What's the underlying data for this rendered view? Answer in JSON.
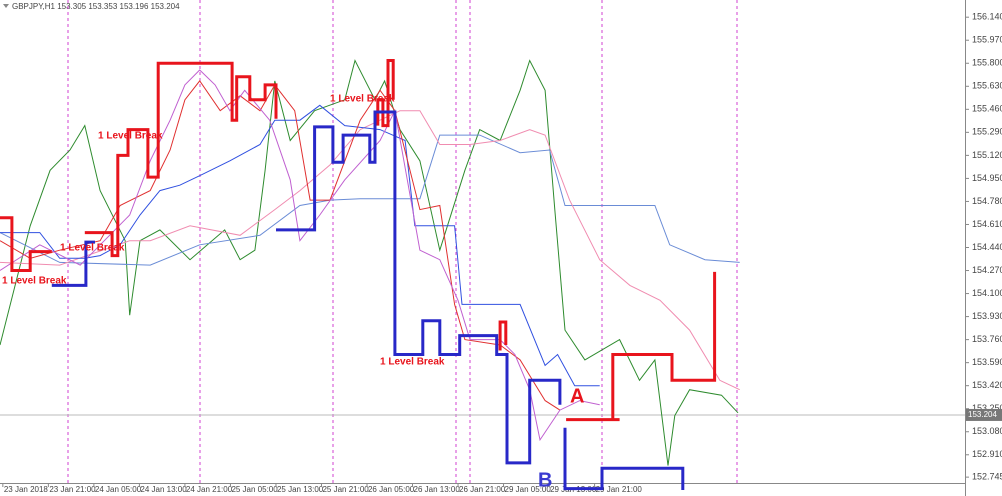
{
  "chart_data": {
    "type": "line",
    "title": "GBPJPY,H1  153.305 153.353 153.196 153.204",
    "xlim": [
      -0.5,
      169.1
    ],
    "ylim": [
      152.65,
      156.23
    ],
    "xticks": [
      {
        "value": 0,
        "label": "23 Jan 2018"
      },
      {
        "value": 8,
        "label": "23 Jan 21:00"
      },
      {
        "value": 16,
        "label": "24 Jan 05:00"
      },
      {
        "value": 24,
        "label": "24 Jan 13:00"
      },
      {
        "value": 32,
        "label": "24 Jan 21:00"
      },
      {
        "value": 40,
        "label": "25 Jan 05:00"
      },
      {
        "value": 48,
        "label": "25 Jan 13:00"
      },
      {
        "value": 56,
        "label": "25 Jan 21:00"
      },
      {
        "value": 64,
        "label": "26 Jan 05:00"
      },
      {
        "value": 72,
        "label": "26 Jan 13:00"
      },
      {
        "value": 80,
        "label": "26 Jan 21:00"
      },
      {
        "value": 88,
        "label": "29 Jan 05:00"
      },
      {
        "value": 96,
        "label": "29 Jan 13:00"
      },
      {
        "value": 104,
        "label": "29 Jan 21:00"
      }
    ],
    "yticks": [
      {
        "value": 156.14,
        "label": "156.140"
      },
      {
        "value": 155.97,
        "label": "155.970"
      },
      {
        "value": 155.8,
        "label": "155.800"
      },
      {
        "value": 155.63,
        "label": "155.630"
      },
      {
        "value": 155.46,
        "label": "155.460"
      },
      {
        "value": 155.29,
        "label": "155.290"
      },
      {
        "value": 155.12,
        "label": "155.120"
      },
      {
        "value": 154.95,
        "label": "154.950"
      },
      {
        "value": 154.78,
        "label": "154.780"
      },
      {
        "value": 154.61,
        "label": "154.610"
      },
      {
        "value": 154.44,
        "label": "154.440"
      },
      {
        "value": 154.27,
        "label": "154.270"
      },
      {
        "value": 154.1,
        "label": "154.100"
      },
      {
        "value": 153.93,
        "label": "153.930"
      },
      {
        "value": 153.76,
        "label": "153.760"
      },
      {
        "value": 153.59,
        "label": "153.590"
      },
      {
        "value": 153.42,
        "label": "153.420"
      },
      {
        "value": 153.25,
        "label": "153.250"
      },
      {
        "value": 153.08,
        "label": "153.080"
      },
      {
        "value": 152.91,
        "label": "152.910"
      },
      {
        "value": 152.745,
        "label": "152.745"
      }
    ],
    "last_price": {
      "value": 153.204,
      "label": "153.204"
    },
    "annotations": [
      {
        "text": "1 Level Break",
        "color": "#e8141c"
      },
      {
        "text": "1 Level Break",
        "color": "#e8141c"
      },
      {
        "text": "1 Level Break",
        "color": "#e8141c"
      },
      {
        "text": "1 Level Break",
        "color": "#e8141c"
      },
      {
        "text": "1 Level Break",
        "color": "#e8141c"
      },
      {
        "text": "A",
        "color": "#e8141c"
      },
      {
        "text": "B",
        "color": "#3a3ad0"
      }
    ],
    "series": [
      {
        "color": "#2e8b2e",
        "width": 1,
        "x": [
          -0.5,
          4.8,
          8.3,
          11.8,
          14.4,
          17.1,
          21.5,
          22.3,
          24.1,
          27.6,
          32.9,
          39.0,
          41.7,
          44.3,
          46.1,
          47.8,
          50.5,
          54.8,
          60.1,
          61.9,
          65.4,
          67.1,
          69.8,
          73.3,
          76.8,
          81.2,
          83.8,
          87.4,
          90.9,
          92.6,
          95.3,
          97.0,
          98.8,
          102.3,
          108.4,
          111.9,
          114.6,
          116.9,
          118.1,
          120.7,
          126.3,
          129.2
        ],
        "values": [
          153.72,
          154.6,
          155.01,
          155.16,
          155.34,
          154.86,
          154.49,
          153.94,
          154.49,
          154.57,
          154.35,
          154.57,
          154.35,
          154.42,
          155.01,
          155.67,
          155.23,
          155.45,
          155.53,
          155.82,
          155.53,
          155.67,
          155.31,
          155.08,
          154.42,
          155.01,
          155.31,
          155.23,
          155.6,
          155.82,
          155.6,
          154.72,
          153.83,
          153.61,
          153.76,
          153.46,
          153.61,
          152.83,
          153.2,
          153.39,
          153.35,
          153.22
        ]
      },
      {
        "color": "#6a8cd6",
        "width": 1,
        "x": [
          -0.5,
          10.0,
          25.9,
          34.6,
          45.2,
          52.2,
          57.5,
          62.8,
          73.3,
          76.8,
          83.8,
          90.9,
          96.1,
          98.8,
          114.6,
          117.2,
          123.4,
          129.5
        ],
        "values": [
          154.55,
          154.33,
          154.31,
          154.46,
          154.53,
          154.75,
          154.79,
          154.8,
          154.8,
          155.27,
          155.27,
          155.14,
          155.16,
          154.75,
          154.75,
          154.46,
          154.35,
          154.33
        ]
      },
      {
        "color": "#f08cb0",
        "width": 1,
        "x": [
          -0.5,
          10.0,
          22.3,
          25.9,
          32.9,
          41.7,
          47.8,
          52.2,
          57.5,
          62.8,
          69.8,
          73.3,
          76.8,
          82.1,
          87.4,
          92.6,
          95.3,
          99.6,
          104.9,
          110.2,
          115.5,
          120.7,
          126.0,
          129.5
        ],
        "values": [
          154.33,
          154.31,
          154.49,
          154.49,
          154.6,
          154.53,
          154.72,
          154.86,
          155.05,
          155.31,
          155.45,
          155.45,
          155.2,
          155.2,
          155.23,
          155.31,
          155.27,
          154.79,
          154.35,
          154.16,
          154.05,
          153.83,
          153.46,
          153.39
        ]
      },
      {
        "color": "#3050e0",
        "width": 1,
        "x": [
          -0.5,
          6.5,
          10.0,
          14.4,
          17.1,
          20.6,
          24.1,
          27.6,
          31.1,
          34.6,
          39.9,
          45.2,
          47.8,
          52.2,
          55.7,
          60.1,
          66.3,
          70.7,
          72.4,
          79.4,
          80.7,
          90.9,
          95.3,
          97.5,
          100.5,
          104.9
        ],
        "values": [
          154.55,
          154.55,
          154.36,
          154.36,
          154.38,
          154.46,
          154.68,
          154.86,
          154.9,
          154.97,
          155.08,
          155.2,
          155.38,
          155.38,
          155.49,
          155.34,
          155.31,
          155.23,
          154.6,
          154.6,
          154.02,
          154.02,
          153.57,
          153.65,
          153.42,
          153.42
        ]
      },
      {
        "color": "#e03030",
        "width": 1,
        "x": [
          -0.5,
          4.8,
          10.0,
          17.1,
          20.6,
          25.9,
          29.4,
          32.0,
          34.6,
          38.2,
          41.7,
          45.2,
          47.8,
          51.3,
          54.0,
          57.5,
          62.8,
          66.3,
          68.9,
          73.3,
          76.8,
          79.4,
          81.2,
          87.4,
          90.9,
          95.3,
          97.9
        ],
        "values": [
          154.49,
          154.36,
          154.42,
          154.49,
          154.75,
          154.86,
          155.16,
          155.53,
          155.67,
          155.45,
          155.56,
          155.45,
          155.64,
          155.45,
          154.79,
          154.79,
          155.38,
          155.6,
          155.45,
          154.72,
          154.75,
          154.02,
          153.76,
          153.72,
          153.61,
          153.31,
          153.24
        ]
      },
      {
        "color": "#c060d0",
        "width": 1,
        "x": [
          -0.5,
          6.5,
          13.6,
          22.3,
          25.9,
          29.4,
          32.0,
          34.6,
          37.3,
          39.9,
          42.5,
          46.9,
          50.5,
          52.2,
          55.7,
          60.1,
          66.3,
          68.9,
          73.3,
          76.8,
          80.0,
          82.1,
          87.4,
          90.0,
          92.6,
          94.4,
          97.9,
          101.4,
          104.9
        ],
        "values": [
          154.27,
          154.46,
          154.31,
          154.68,
          155.08,
          155.38,
          155.64,
          155.75,
          155.64,
          155.45,
          155.6,
          155.38,
          154.94,
          154.49,
          154.68,
          154.94,
          155.23,
          155.45,
          154.42,
          154.35,
          154.05,
          153.76,
          153.76,
          153.65,
          153.39,
          153.02,
          153.24,
          153.31,
          153.28
        ]
      },
      {
        "color": "#e8141c",
        "width": 3,
        "x": [
          -0.5,
          1.6,
          1.6,
          4.8,
          4.8,
          8.6,
          null,
          14.4,
          19.2,
          19.2,
          20.2,
          20.2,
          22.0,
          22.0,
          25.5,
          25.5,
          27.3,
          27.3,
          40.3,
          40.3,
          41.1,
          41.1,
          43.4,
          43.4,
          46.1,
          46.1,
          48.0,
          48.0,
          null,
          65.9,
          65.9,
          66.8,
          66.8,
          67.7,
          67.7,
          68.6,
          68.6,
          null,
          87.4,
          87.4,
          88.4,
          88.4,
          null,
          99.0,
          108.4,
          null,
          107.2,
          107.2,
          117.6,
          117.6,
          125.1,
          125.1
        ],
        "values": [
          154.66,
          154.66,
          154.27,
          154.27,
          154.41,
          154.41,
          null,
          154.55,
          154.55,
          154.38,
          154.38,
          155.12,
          155.12,
          155.31,
          155.31,
          154.96,
          154.96,
          155.8,
          155.8,
          155.38,
          155.38,
          155.7,
          155.7,
          155.53,
          155.53,
          155.64,
          155.64,
          155.39,
          null,
          155.34,
          155.53,
          155.53,
          155.34,
          155.34,
          155.82,
          155.82,
          155.53,
          null,
          153.68,
          153.89,
          153.89,
          153.72,
          null,
          153.17,
          153.17,
          null,
          153.17,
          153.65,
          153.65,
          153.46,
          153.46,
          154.26
        ]
      },
      {
        "color": "#2828c8",
        "width": 3,
        "x": [
          8.6,
          14.6,
          14.6,
          16.2,
          null,
          48.0,
          54.8,
          54.8,
          58.0,
          58.0,
          59.8,
          59.8,
          64.5,
          64.5,
          65.4,
          65.4,
          68.9,
          68.9,
          73.8,
          73.8,
          76.8,
          76.8,
          80.3,
          80.3,
          86.8,
          86.8,
          88.6,
          88.6,
          92.6,
          92.6,
          97.9,
          97.9,
          null,
          98.8,
          98.8,
          105.3,
          105.3,
          119.5,
          119.5
        ],
        "values": [
          154.16,
          154.16,
          154.48,
          154.48,
          null,
          154.57,
          154.57,
          155.33,
          155.33,
          155.07,
          155.07,
          155.27,
          155.27,
          155.07,
          155.07,
          155.44,
          155.44,
          153.65,
          153.65,
          153.9,
          153.9,
          153.65,
          153.65,
          153.79,
          153.79,
          153.65,
          153.65,
          152.85,
          152.85,
          153.46,
          153.46,
          153.28,
          null,
          153.11,
          152.66,
          152.66,
          152.81,
          152.81,
          152.65
        ]
      }
    ]
  }
}
